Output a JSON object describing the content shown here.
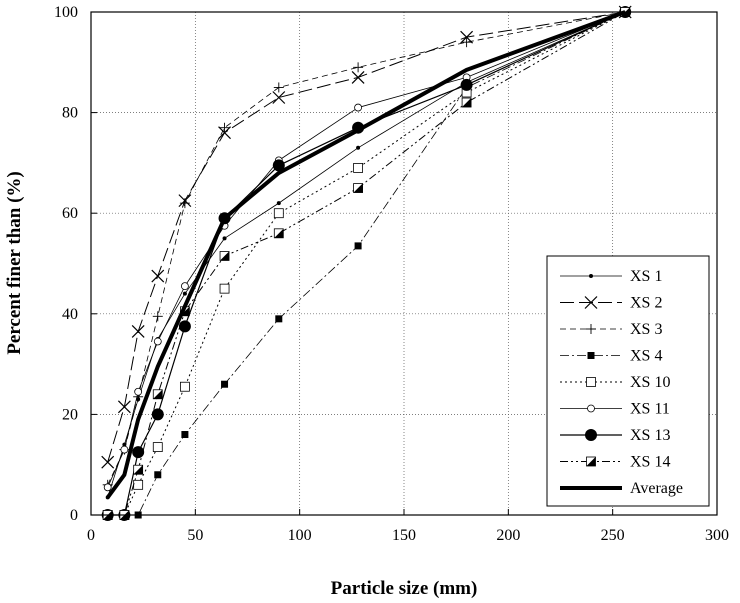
{
  "chart_data": {
    "type": "line",
    "title": "",
    "xlabel": "Particle size (mm)",
    "ylabel": "Percent finer than (%)",
    "xlim": [
      0,
      300
    ],
    "ylim": [
      0,
      100
    ],
    "xticks": [
      0,
      50,
      100,
      150,
      200,
      250,
      300
    ],
    "yticks": [
      0,
      20,
      40,
      60,
      80,
      100
    ],
    "grid": true,
    "legend_position": "bottom-right",
    "series": [
      {
        "name": "XS 1",
        "marker": "small-dot",
        "dash": "solid",
        "width": 0.8,
        "x": [
          8,
          16,
          22.6,
          32,
          45,
          64,
          90,
          128,
          180,
          256
        ],
        "y": [
          3.5,
          14,
          23,
          35,
          44,
          55,
          62,
          73,
          86,
          100
        ]
      },
      {
        "name": "XS 2",
        "marker": "x",
        "dash": "long-dash",
        "width": 1,
        "x": [
          8,
          16,
          22.6,
          32,
          45,
          64,
          90,
          128,
          180,
          256
        ],
        "y": [
          10.5,
          21.5,
          36.5,
          47.5,
          62.5,
          76,
          83,
          87,
          95,
          100
        ]
      },
      {
        "name": "XS 3",
        "marker": "plus",
        "dash": "dash",
        "width": 0.8,
        "x": [
          8,
          16,
          22.6,
          32,
          45,
          64,
          90,
          128,
          180,
          256
        ],
        "y": [
          6,
          13,
          23.5,
          39.5,
          62,
          77,
          85,
          89,
          94,
          100
        ]
      },
      {
        "name": "XS 4",
        "marker": "filled-square",
        "dash": "dash-dot",
        "width": 0.8,
        "x": [
          8,
          16,
          22.6,
          32,
          45,
          64,
          90,
          128,
          180,
          256
        ],
        "y": [
          0,
          0,
          0,
          8,
          16,
          26,
          39,
          53.5,
          85,
          100
        ]
      },
      {
        "name": "XS 10",
        "marker": "open-square",
        "dash": "dot",
        "width": 1,
        "x": [
          8,
          16,
          22.6,
          32,
          45,
          64,
          90,
          128,
          180,
          256
        ],
        "y": [
          0,
          0,
          6,
          13.5,
          25.5,
          45,
          60,
          69,
          84,
          100
        ]
      },
      {
        "name": "XS 11",
        "marker": "open-circle",
        "dash": "solid",
        "width": 0.8,
        "x": [
          8,
          16,
          22.6,
          32,
          45,
          64,
          90,
          128,
          180,
          256
        ],
        "y": [
          5.5,
          13,
          24.5,
          34.5,
          45.5,
          57.5,
          70.5,
          81,
          87,
          100
        ]
      },
      {
        "name": "XS 13",
        "marker": "filled-circle",
        "dash": "solid",
        "width": 1.2,
        "x": [
          8,
          16,
          22.6,
          32,
          45,
          64,
          90,
          128,
          180,
          256
        ],
        "y": [
          0,
          0,
          12.5,
          20,
          37.5,
          59,
          69.5,
          77,
          85.5,
          100
        ]
      },
      {
        "name": "XS 14",
        "marker": "half-square",
        "dash": "dash-dot-dot",
        "width": 1,
        "x": [
          8,
          16,
          22.6,
          32,
          45,
          64,
          90,
          128,
          180,
          256
        ],
        "y": [
          0,
          0,
          9,
          24,
          40.5,
          51.5,
          56,
          65,
          82,
          100
        ]
      },
      {
        "name": "Average",
        "marker": "none",
        "dash": "solid",
        "width": 4,
        "x": [
          8,
          16,
          22.6,
          32,
          45,
          64,
          90,
          128,
          180,
          256
        ],
        "y": [
          3.5,
          8,
          19,
          29.5,
          41.5,
          59,
          68,
          76.5,
          88.5,
          100
        ]
      }
    ]
  }
}
